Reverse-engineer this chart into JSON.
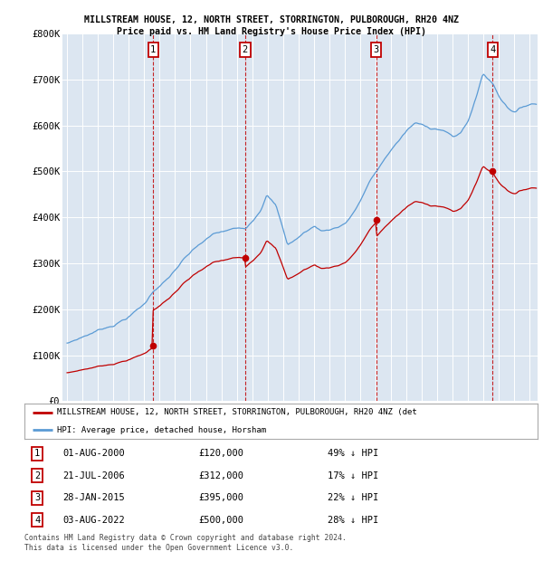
{
  "title": "MILLSTREAM HOUSE, 12, NORTH STREET, STORRINGTON, PULBOROUGH, RH20 4NZ",
  "subtitle": "Price paid vs. HM Land Registry's House Price Index (HPI)",
  "ylim": [
    0,
    800000
  ],
  "yticks": [
    0,
    100000,
    200000,
    300000,
    400000,
    500000,
    600000,
    700000,
    800000
  ],
  "ytick_labels": [
    "£0",
    "£100K",
    "£200K",
    "£300K",
    "£400K",
    "£500K",
    "£600K",
    "£700K",
    "£800K"
  ],
  "hpi_color": "#5b9bd5",
  "price_color": "#c00000",
  "purchases": [
    {
      "t": 2000.583,
      "price": 120000,
      "label": "1"
    },
    {
      "t": 2006.542,
      "price": 312000,
      "label": "2"
    },
    {
      "t": 2015.042,
      "price": 395000,
      "label": "3"
    },
    {
      "t": 2022.583,
      "price": 500000,
      "label": "4"
    }
  ],
  "table_rows": [
    {
      "num": "1",
      "date": "01-AUG-2000",
      "price": "£120,000",
      "pct": "49% ↓ HPI"
    },
    {
      "num": "2",
      "date": "21-JUL-2006",
      "price": "£312,000",
      "pct": "17% ↓ HPI"
    },
    {
      "num": "3",
      "date": "28-JAN-2015",
      "price": "£395,000",
      "pct": "22% ↓ HPI"
    },
    {
      "num": "4",
      "date": "03-AUG-2022",
      "price": "£500,000",
      "pct": "28% ↓ HPI"
    }
  ],
  "legend_label_red": "MILLSTREAM HOUSE, 12, NORTH STREET, STORRINGTON, PULBOROUGH, RH20 4NZ (det",
  "legend_label_blue": "HPI: Average price, detached house, Horsham",
  "footer": "Contains HM Land Registry data © Crown copyright and database right 2024.\nThis data is licensed under the Open Government Licence v3.0.",
  "plot_bg_color": "#dce6f1",
  "grid_color": "#ffffff",
  "box_color": "#c00000",
  "xmin": 1994.7,
  "xmax": 2025.5
}
